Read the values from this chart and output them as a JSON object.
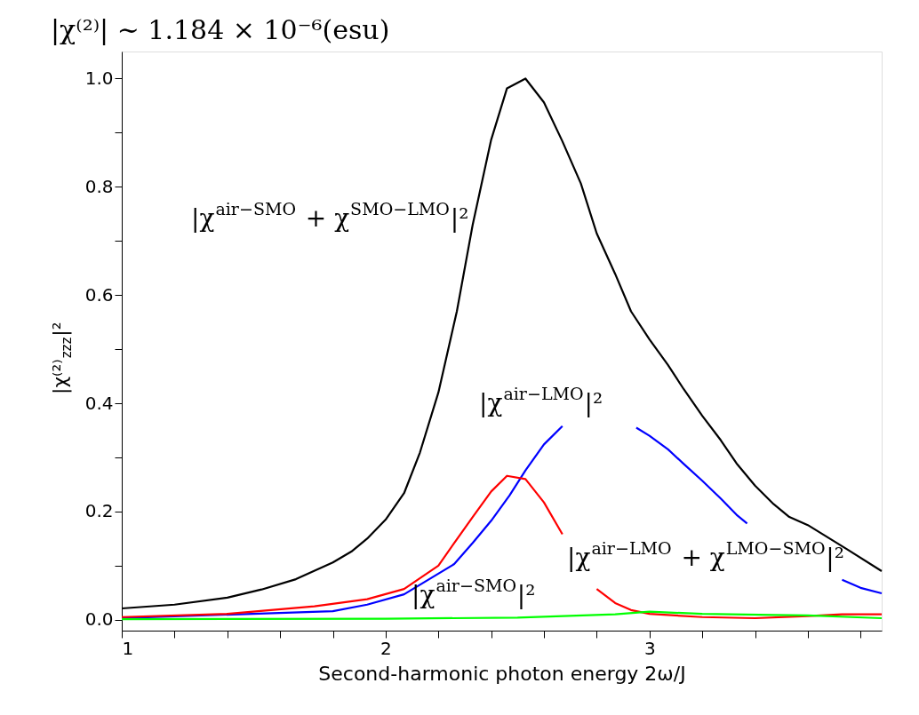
{
  "chart_data": {
    "type": "line",
    "title": "|χ⁽²⁾| ∼ 1.184 × 10⁻⁶(esu)",
    "xlabel": "Second-harmonic photon energy 2ω/J",
    "ylabel": "|χ⁽²⁾$_{zzz}$|²",
    "xlim": [
      1,
      3.88
    ],
    "ylim": [
      -0.02,
      1.05
    ],
    "xticks": [
      1,
      {
        "value": 1.2,
        "label": null
      },
      {
        "value": 1.4,
        "label": null
      },
      {
        "value": 1.6,
        "label": null
      },
      {
        "value": 1.8,
        "label": null
      },
      2,
      {
        "value": 2.2,
        "label": null
      },
      {
        "value": 2.4,
        "label": null
      },
      {
        "value": 2.6,
        "label": null
      },
      {
        "value": 2.8,
        "label": null
      },
      3,
      {
        "value": 3.2,
        "label": null
      },
      {
        "value": 3.4,
        "label": null
      },
      {
        "value": 3.6,
        "label": null
      },
      {
        "value": 3.8,
        "label": null
      }
    ],
    "yticks": [
      {
        "value": 0,
        "label": "0.0"
      },
      {
        "value": 0.1,
        "label": null
      },
      {
        "value": 0.2,
        "label": "0.2"
      },
      {
        "value": 0.3,
        "label": null
      },
      {
        "value": 0.4,
        "label": "0.4"
      },
      {
        "value": 0.5,
        "label": null
      },
      {
        "value": 0.6,
        "label": "0.6"
      },
      {
        "value": 0.7,
        "label": null
      },
      {
        "value": 0.8,
        "label": "0.8"
      },
      {
        "value": 0.9,
        "label": null
      },
      {
        "value": 1,
        "label": "1.0"
      }
    ],
    "grid": false,
    "legend": false,
    "line_style": "solid",
    "marker": "none",
    "series": [
      {
        "color": "#000000",
        "x": [
          1,
          1.2,
          1.4,
          1.53,
          1.66,
          1.8,
          1.87,
          1.93,
          2,
          2.07,
          2.13,
          2.2,
          2.27,
          2.33,
          2.4,
          2.46,
          2.53,
          2.6,
          2.67,
          2.74,
          2.8,
          2.87,
          2.93,
          3,
          3.07,
          3.13,
          3.2,
          3.27,
          3.33,
          3.4,
          3.47,
          3.53,
          3.6,
          3.75,
          3.88
        ],
        "values": [
          0.021,
          0.028,
          0.041,
          0.056,
          0.075,
          0.106,
          0.126,
          0.15,
          0.185,
          0.234,
          0.309,
          0.42,
          0.57,
          0.73,
          0.887,
          0.982,
          1.0,
          0.956,
          0.884,
          0.806,
          0.714,
          0.639,
          0.57,
          0.518,
          0.471,
          0.426,
          0.377,
          0.332,
          0.289,
          0.248,
          0.214,
          0.19,
          0.175,
          0.13,
          0.09
        ]
      },
      {
        "color": "#0000ff",
        "x": [
          1,
          1.8,
          1.93,
          2.07,
          2.26,
          2.33,
          2.4,
          2.47,
          2.53,
          2.6,
          2.67,
          2.8,
          2.95,
          3,
          3.07,
          3.13,
          3.2,
          3.27,
          3.33,
          3.37,
          3.55,
          3.73,
          3.8,
          3.88
        ],
        "values": [
          0.003,
          0.016,
          0.028,
          0.047,
          0.103,
          0.142,
          0.183,
          0.23,
          0.276,
          0.324,
          0.358,
          null,
          0.355,
          0.34,
          0.315,
          0.288,
          0.257,
          0.224,
          0.194,
          0.178,
          null,
          0.074,
          0.059,
          0.049
        ]
      },
      {
        "color": "#ff0000",
        "x": [
          1,
          1.4,
          1.73,
          1.93,
          2.07,
          2.2,
          2.26,
          2.33,
          2.4,
          2.46,
          2.53,
          2.6,
          2.67,
          2.73,
          2.8,
          2.87,
          2.93,
          3,
          3.2,
          3.4,
          3.6,
          3.73,
          3.88
        ],
        "values": [
          0.005,
          0.011,
          0.025,
          0.038,
          0.057,
          0.1,
          0.142,
          0.19,
          0.237,
          0.266,
          0.26,
          0.217,
          0.158,
          null,
          0.057,
          0.031,
          0.018,
          0.011,
          0.005,
          0.003,
          0.007,
          0.01,
          0.01
        ]
      },
      {
        "color": "#00ff00",
        "x": [
          1,
          2,
          2.5,
          2.87,
          3,
          3.2,
          3.47,
          3.6,
          3.88
        ],
        "values": [
          0.001,
          0.002,
          0.004,
          0.01,
          0.015,
          0.011,
          0.009,
          0.008,
          0.003
        ]
      }
    ],
    "annotations": [
      "|χ$^{air−SMO}$ + χ$^{SMO−LMO}$|²",
      "|χ$^{air−LMO}$|²",
      "|χ$^{air−SMO}$|²",
      "|χ$^{air−LMO}$ + χ$^{LMO−SMO}$|²"
    ]
  }
}
